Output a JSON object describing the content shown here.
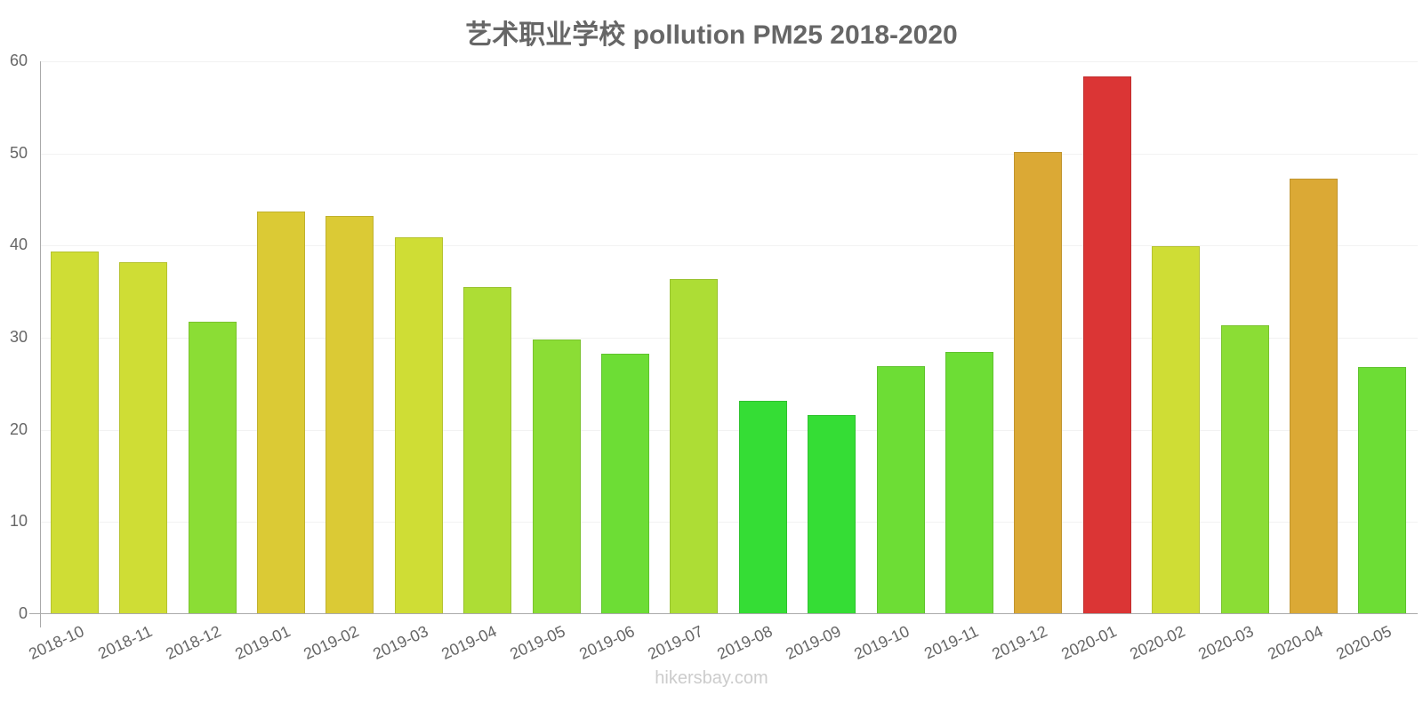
{
  "title": "艺术职业学校 pollution PM25 2018-2020",
  "footer": "hikersbay.com",
  "chart_data": {
    "type": "bar",
    "title": "艺术职业学校 pollution PM25 2018-2020",
    "xlabel": "",
    "ylabel": "",
    "ylim": [
      0,
      60
    ],
    "yticks": [
      0,
      10,
      20,
      30,
      40,
      50,
      60
    ],
    "grid": true,
    "legend": null,
    "categories": [
      "2018-10",
      "2018-11",
      "2018-12",
      "2019-01",
      "2019-02",
      "2019-03",
      "2019-04",
      "2019-05",
      "2019-06",
      "2019-07",
      "2019-08",
      "2019-09",
      "2019-10",
      "2019-11",
      "2019-12",
      "2020-01",
      "2020-02",
      "2020-03",
      "2020-04",
      "2020-05"
    ],
    "values": [
      39.4,
      38.2,
      31.7,
      43.7,
      43.2,
      40.9,
      35.5,
      29.8,
      28.3,
      36.4,
      23.2,
      21.6,
      26.9,
      28.5,
      50.2,
      58.4,
      39.9,
      31.4,
      47.3,
      26.8
    ],
    "colors": [
      "#cfdd35",
      "#cfdd35",
      "#8bdd35",
      "#dbca35",
      "#dbca35",
      "#cfdd35",
      "#addd35",
      "#8bdd35",
      "#6ddd35",
      "#addd35",
      "#35dd35",
      "#35dd35",
      "#6ddd35",
      "#6ddd35",
      "#dba935",
      "#db3535",
      "#cfdd35",
      "#8bdd35",
      "#dba935",
      "#6ddd35"
    ]
  }
}
